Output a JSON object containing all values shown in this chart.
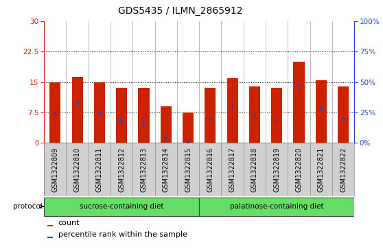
{
  "title": "GDS5435 / ILMN_2865912",
  "samples": [
    "GSM1322809",
    "GSM1322810",
    "GSM1322811",
    "GSM1322812",
    "GSM1322813",
    "GSM1322814",
    "GSM1322815",
    "GSM1322816",
    "GSM1322817",
    "GSM1322818",
    "GSM1322819",
    "GSM1322820",
    "GSM1322821",
    "GSM1322822"
  ],
  "counts": [
    15.0,
    16.2,
    15.0,
    13.5,
    13.5,
    9.0,
    7.5,
    13.5,
    16.0,
    14.0,
    13.5,
    20.0,
    15.5,
    14.0
  ],
  "percentile_ranks": [
    25,
    33,
    25,
    18,
    17,
    4,
    1,
    20,
    30,
    22,
    18,
    47,
    28,
    20
  ],
  "bar_color": "#cc2200",
  "marker_color": "#2244cc",
  "ylim_left": [
    0,
    30
  ],
  "ylim_right": [
    0,
    100
  ],
  "yticks_left": [
    0,
    7.5,
    15,
    22.5,
    30
  ],
  "ytick_labels_left": [
    "0",
    "7.5",
    "15",
    "22.5",
    "30"
  ],
  "ytick_labels_right": [
    "0%",
    "25%",
    "50%",
    "75%",
    "100%"
  ],
  "grid_values": [
    7.5,
    15,
    22.5
  ],
  "sucrose_count": 7,
  "palatinose_count": 7,
  "sucrose_label": "sucrose-containing diet",
  "palatinose_label": "palatinose-containing diet",
  "group_color": "#66dd66",
  "protocol_label": "protocol",
  "legend_count_label": "count",
  "legend_percentile_label": "percentile rank within the sample",
  "title_fontsize": 10,
  "tick_fontsize": 7.5,
  "label_fontsize": 7,
  "bar_width": 0.5,
  "sample_bg_color": "#d0d0d0",
  "plot_bg": "#ffffff",
  "border_color": "#888888"
}
